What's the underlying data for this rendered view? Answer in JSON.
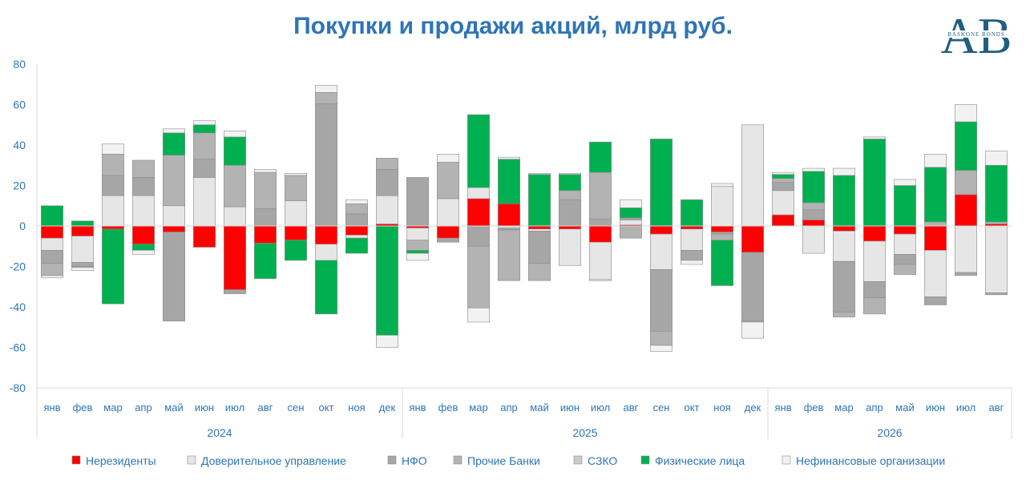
{
  "title": "Покупки и продажи акций, млрд руб.",
  "logo": {
    "text_big": "AB",
    "text_small": "BASKONE BONDS",
    "color": "#1f5f80"
  },
  "colors": {
    "nonres": "#ff0000",
    "trust": "#e6e6e6",
    "npf": "#a6a6a6",
    "banks": "#b3b3b3",
    "szko": "#cccccc",
    "phys": "#00b050",
    "nonfin": "#f2f2f2"
  },
  "chart_data": {
    "type": "bar",
    "stacked": true,
    "ylim": [
      -80,
      80
    ],
    "yticks": [
      -80,
      -60,
      -40,
      -20,
      0,
      20,
      40,
      60,
      80
    ],
    "grid": false,
    "legend_position": "bottom",
    "years": [
      {
        "label": "2024",
        "months": [
          "янв",
          "фев",
          "мар",
          "апр",
          "май",
          "июн",
          "июл",
          "авг",
          "сен",
          "окт",
          "ноя",
          "дек"
        ]
      },
      {
        "label": "2025",
        "months": [
          "янв",
          "фев",
          "мар",
          "апр",
          "май",
          "июн",
          "июл",
          "авг",
          "сен",
          "окт",
          "ноя",
          "дек"
        ]
      },
      {
        "label": "2026",
        "months": [
          "янв",
          "фев",
          "мар",
          "апр",
          "май",
          "июн",
          "июл",
          "авг"
        ]
      }
    ],
    "series": [
      {
        "key": "nonres",
        "name": "Нерезиденты",
        "values": [
          -6,
          -5,
          -1.5,
          -9,
          -3,
          -10.5,
          -31.5,
          -8.5,
          -7,
          -9,
          -4.5,
          1,
          -1,
          -6,
          13.5,
          11,
          -1.5,
          -1.5,
          -8,
          0.5,
          -4,
          -1.5,
          -3,
          -13,
          5.5,
          3,
          -2.5,
          -7.5,
          -4,
          -12,
          15.5,
          1
        ]
      },
      {
        "key": "trust",
        "name": "Доверительное управление",
        "values": [
          -6,
          -13,
          15,
          15,
          10,
          24,
          9.5,
          0,
          12.5,
          -8,
          -1.5,
          14,
          -6,
          13.5,
          5.5,
          -1,
          -1,
          -18,
          -18.5,
          2.5,
          -17.5,
          -10.5,
          19.5,
          50,
          12,
          -13.5,
          -15,
          -20,
          -10,
          -23,
          -23,
          -33
        ]
      },
      {
        "key": "npf",
        "name": "НФО",
        "values": [
          -6.5,
          -2,
          10,
          9,
          -44,
          9,
          -2,
          8.5,
          0,
          60.5,
          6,
          13,
          24,
          -2,
          -10,
          -1,
          -16,
          13,
          3.5,
          1,
          -30.5,
          -5,
          -1,
          -34,
          4,
          5,
          -25,
          -8,
          -5,
          -4,
          -1.5,
          -1
        ]
      },
      {
        "key": "banks",
        "name": "Прочие Банки",
        "values": [
          -6,
          -0.5,
          10.5,
          8.5,
          25,
          13,
          20.5,
          18,
          12.5,
          5.5,
          5,
          5.5,
          -5,
          18,
          -30.5,
          -25,
          -8.5,
          4.5,
          23,
          -6,
          -7,
          0,
          -3,
          -0.5,
          2,
          3.5,
          -2.5,
          -8,
          -5,
          2,
          12,
          1
        ]
      },
      {
        "key": "szko",
        "name": "СЗКО",
        "values": [
          0,
          0,
          0,
          0,
          0,
          0,
          0,
          0,
          0,
          0,
          0,
          0,
          0,
          0,
          0,
          0,
          0,
          0,
          0,
          0,
          0,
          0,
          0,
          0,
          0,
          0,
          0,
          0,
          0,
          0,
          0,
          0
        ]
      },
      {
        "key": "phys",
        "name": "Физические лица",
        "values": [
          10,
          2.5,
          -37,
          -3,
          11,
          4,
          14,
          -17.5,
          -10,
          -26.5,
          -7.5,
          -54,
          -1.5,
          0,
          36,
          22,
          25.5,
          8,
          15,
          5,
          43,
          13,
          -22.5,
          0,
          2,
          15.5,
          25,
          43,
          20,
          27,
          24,
          28
        ]
      },
      {
        "key": "nonfin",
        "name": "Нефинансовые организации",
        "values": [
          -1,
          -1.5,
          5,
          -2,
          2,
          2,
          3,
          1.5,
          1,
          3.5,
          2,
          -6,
          -3.5,
          4,
          -7,
          1,
          0.5,
          0.5,
          -0.5,
          4,
          -3,
          -2,
          1.5,
          -8,
          1,
          1.5,
          3.5,
          1,
          3,
          6.5,
          8.5,
          7
        ]
      }
    ]
  }
}
